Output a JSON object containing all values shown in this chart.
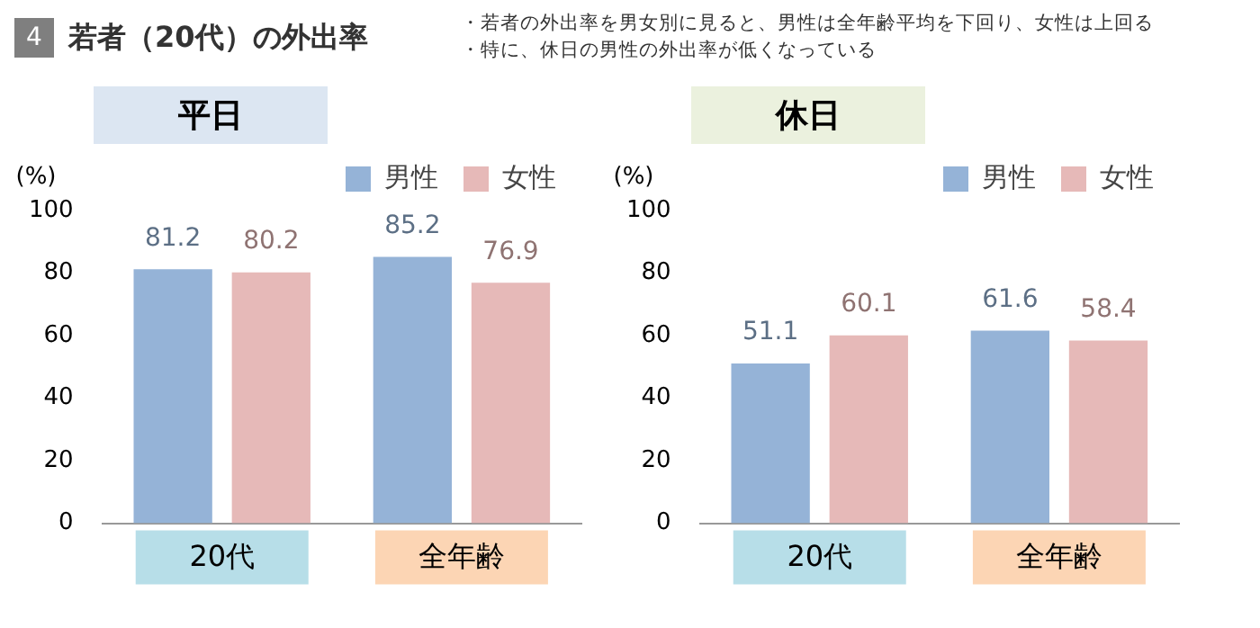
{
  "chart_data": [
    {
      "type": "other",
      "title": "若者（20代）の外出率",
      "annotations": [
        "4",
        "・若者の外出率を男女別に見ると、男性は全年齢平均を下回り、女性は上回る",
        "・特に、休日の男性の外出率が低くなっている"
      ]
    },
    {
      "type": "bar",
      "title": "平日",
      "ylabel": "(%)",
      "categories": [
        "20代",
        "全年齢"
      ],
      "series": [
        {
          "name": "男性",
          "color": "#95b3d7",
          "values": [
            81.2,
            85.2
          ]
        },
        {
          "name": "女性",
          "color": "#e6b9b8",
          "values": [
            80.2,
            76.9
          ]
        }
      ],
      "ylim": [
        0,
        100
      ],
      "yticks": [
        0,
        20,
        40,
        60,
        80,
        100
      ],
      "grid": false,
      "legend": "top right",
      "data_labels": true
    },
    {
      "type": "bar",
      "title": "休日",
      "ylabel": "(%)",
      "categories": [
        "20代",
        "全年齢"
      ],
      "series": [
        {
          "name": "男性",
          "color": "#95b3d7",
          "values": [
            51.1,
            61.6
          ]
        },
        {
          "name": "女性",
          "color": "#e6b9b8",
          "values": [
            60.1,
            58.4
          ]
        }
      ],
      "ylim": [
        0,
        100
      ],
      "yticks": [
        0,
        20,
        40,
        60,
        80,
        100
      ],
      "grid": false,
      "legend": "top right",
      "data_labels": true
    }
  ]
}
